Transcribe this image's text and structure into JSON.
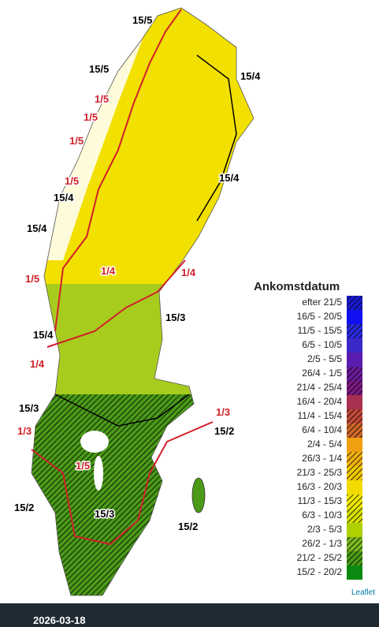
{
  "map": {
    "labels": [
      {
        "text": "15/5",
        "color": "#000000"
      },
      {
        "text": "15/5",
        "color": "#000000"
      },
      {
        "text": "15/4",
        "color": "#000000"
      },
      {
        "text": "1/5",
        "color": "#d0202a"
      },
      {
        "text": "1/5",
        "color": "#d0202a"
      },
      {
        "text": "1/5",
        "color": "#d0202a"
      },
      {
        "text": "15/4",
        "color": "#000000"
      },
      {
        "text": "1/5",
        "color": "#d0202a"
      },
      {
        "text": "15/4",
        "color": "#000000"
      },
      {
        "text": "15/4",
        "color": "#000000"
      },
      {
        "text": "1/4",
        "color": "#d0202a"
      },
      {
        "text": "1/4",
        "color": "#d0202a"
      },
      {
        "text": "1/5",
        "color": "#d0202a"
      },
      {
        "text": "15/3",
        "color": "#000000"
      },
      {
        "text": "15/4",
        "color": "#000000"
      },
      {
        "text": "1/4",
        "color": "#d0202a"
      },
      {
        "text": "15/3",
        "color": "#000000"
      },
      {
        "text": "1/3",
        "color": "#d0202a"
      },
      {
        "text": "1/3",
        "color": "#d0202a"
      },
      {
        "text": "15/2",
        "color": "#000000"
      },
      {
        "text": "1/5",
        "color": "#d0202a"
      },
      {
        "text": "15/2",
        "color": "#000000"
      },
      {
        "text": "15/3",
        "color": "#000000"
      },
      {
        "text": "15/2",
        "color": "#000000"
      }
    ],
    "legend": {
      "title": "Ankomstdatum",
      "entries": [
        {
          "label": "efter 21/5",
          "color": "#1a1ad0",
          "hatched": true
        },
        {
          "label": "16/5 - 20/5",
          "color": "#1010f0",
          "hatched": false
        },
        {
          "label": "11/5 - 15/5",
          "color": "#2a2ae0",
          "hatched": true
        },
        {
          "label": "6/5 - 10/5",
          "color": "#3a28c8",
          "hatched": false
        },
        {
          "label": "2/5 - 5/5",
          "color": "#5a1cb0",
          "hatched": false
        },
        {
          "label": "26/4 - 1/5",
          "color": "#6a1a9a",
          "hatched": true
        },
        {
          "label": "21/4 - 25/4",
          "color": "#7a1a80",
          "hatched": true
        },
        {
          "label": "16/4 - 20/4",
          "color": "#a83050",
          "hatched": false
        },
        {
          "label": "11/4 - 15/4",
          "color": "#c04838",
          "hatched": true
        },
        {
          "label": "6/4 - 10/4",
          "color": "#d06828",
          "hatched": true
        },
        {
          "label": "2/4 - 5/4",
          "color": "#f0a010",
          "hatched": false
        },
        {
          "label": "26/3 - 1/4",
          "color": "#f0b010",
          "hatched": true
        },
        {
          "label": "21/3 - 25/3",
          "color": "#f0c800",
          "hatched": true
        },
        {
          "label": "16/3 - 20/3",
          "color": "#f2dc00",
          "hatched": false
        },
        {
          "label": "11/3 - 15/3",
          "color": "#eee800",
          "hatched": true
        },
        {
          "label": "6/3 - 10/3",
          "color": "#d6e000",
          "hatched": true
        },
        {
          "label": "2/3 - 5/3",
          "color": "#b0d000",
          "hatched": false
        },
        {
          "label": "26/2 - 1/3",
          "color": "#7ab820",
          "hatched": true
        },
        {
          "label": "21/2 - 25/2",
          "color": "#4a9a18",
          "hatched": true
        },
        {
          "label": "15/2 - 20/2",
          "color": "#0a8a10",
          "hatched": false
        }
      ]
    },
    "attribution": "Leaflet"
  },
  "footer": {
    "date": "2026-03-18"
  }
}
